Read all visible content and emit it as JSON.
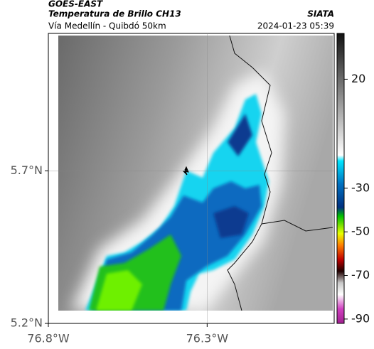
{
  "header": {
    "satellite": "GOES-EAST",
    "product": "Temperatura de Brillo CH13",
    "agency": "SIATA",
    "region": "Vía Medellín - Quibdó 50km",
    "timestamp": "2024-01-23 05:39"
  },
  "map": {
    "xlim": [
      -76.8,
      -75.9
    ],
    "ylim": [
      5.2,
      6.15
    ],
    "xticks": [
      {
        "value": -76.8,
        "label": "76.8°W"
      },
      {
        "value": -76.3,
        "label": "76.3°W"
      }
    ],
    "yticks": [
      {
        "value": 5.2,
        "label": "5.2°N"
      },
      {
        "value": 5.7,
        "label": "5.7°N"
      }
    ]
  },
  "colorbar": {
    "clim": [
      -92,
      41
    ],
    "ticks": [
      20,
      -30,
      -50,
      -70,
      -90
    ]
  }
}
